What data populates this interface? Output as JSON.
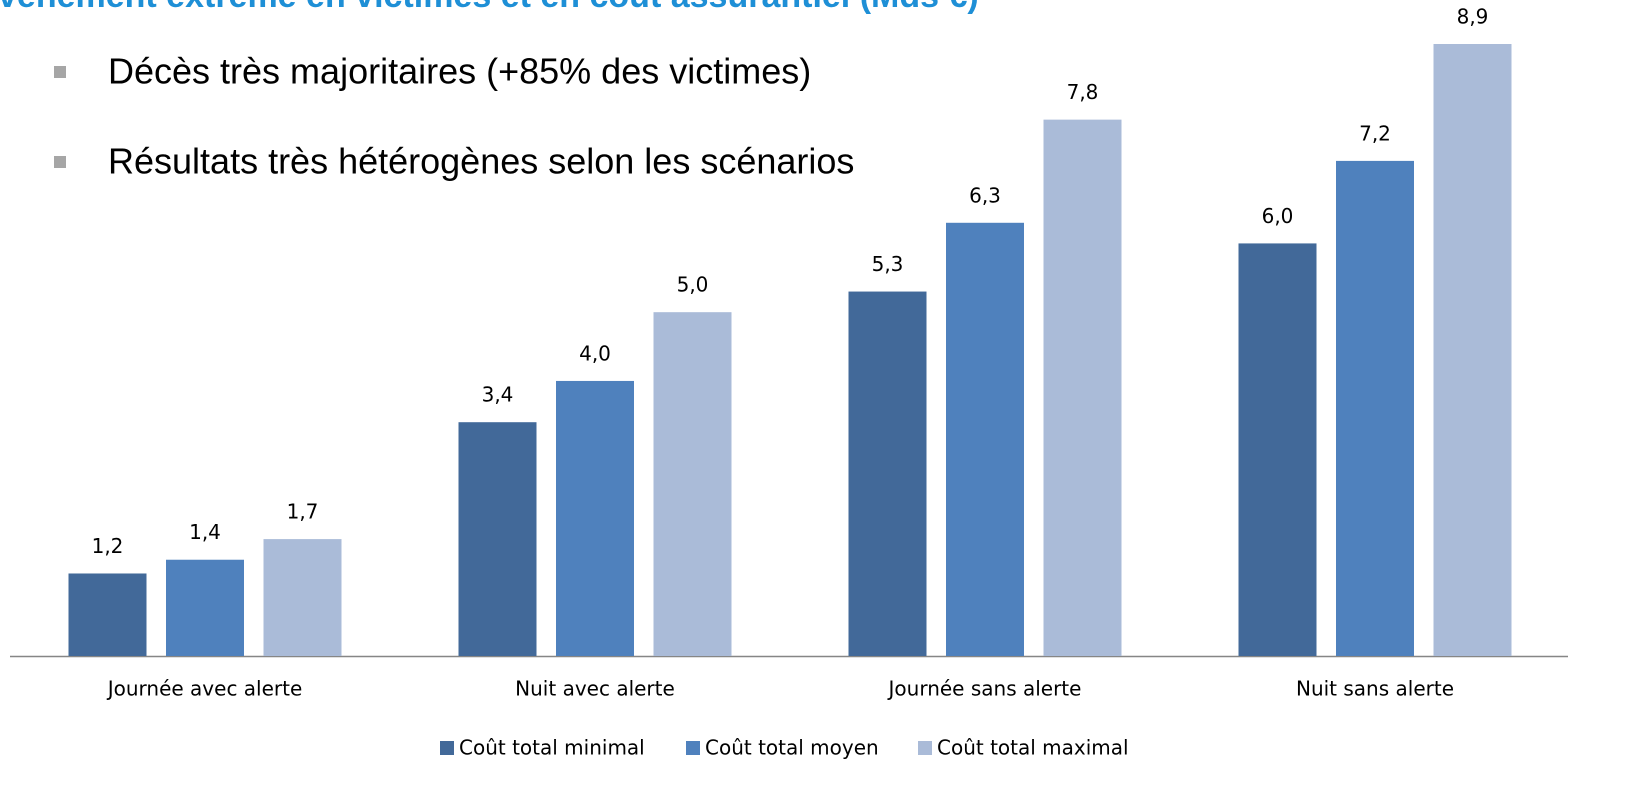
{
  "title": "vènement extrême en victimes et en coût assurantiel (Mds €)",
  "bullets": [
    "Décès très majoritaires (+85% des victimes)",
    "Résultats très hétérogènes selon les scénarios"
  ],
  "chart_data": {
    "type": "bar",
    "categories": [
      "Journée avec alerte",
      "Nuit avec alerte",
      "Journée sans alerte",
      "Nuit sans alerte"
    ],
    "series": [
      {
        "name": "Coût total minimal",
        "color": "#426999",
        "values": [
          1.2,
          3.4,
          5.3,
          6.0
        ],
        "value_labels": [
          "1,2",
          "3,4",
          "5,3",
          "6,0"
        ]
      },
      {
        "name": "Coût total moyen",
        "color": "#4f81bd",
        "values": [
          1.4,
          4.0,
          6.3,
          7.2
        ],
        "value_labels": [
          "1,4",
          "4,0",
          "6,3",
          "7,2"
        ]
      },
      {
        "name": "Coût total maximal",
        "color": "#aabbd8",
        "values": [
          1.7,
          5.0,
          7.8,
          8.9
        ],
        "value_labels": [
          "1,7",
          "5,0",
          "7,8",
          "8,9"
        ]
      }
    ],
    "legend": "bottom"
  }
}
